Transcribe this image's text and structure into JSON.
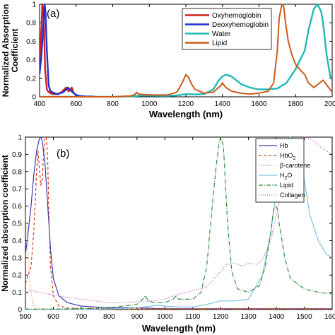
{
  "chart_data": [
    {
      "type": "line",
      "panel_label": "(a)",
      "xlabel": "Wavelength (nm)",
      "ylabel": "Normalized Absorption Coefficient",
      "xlim": [
        400,
        2000
      ],
      "ylim": [
        0,
        1
      ],
      "xticks": [
        400,
        600,
        800,
        1000,
        1200,
        1400,
        1600,
        1800,
        2000
      ],
      "yticks": [
        0,
        0.2,
        0.4,
        0.6,
        0.8,
        1
      ],
      "ytick_labels": [
        "0",
        "0.2",
        "0.4",
        "0.6",
        "0.8",
        "1"
      ],
      "legend_position": "top-center",
      "series": [
        {
          "name": "Oxyhemoglobin",
          "color": "#d11f1f",
          "width": 2.4,
          "x": [
            400,
            410,
            415,
            420,
            425,
            430,
            440,
            450,
            460,
            470,
            480,
            500,
            520,
            530,
            540,
            545,
            550,
            560,
            570,
            576,
            585,
            600,
            620,
            650,
            700
          ],
          "y": [
            0.4,
            0.75,
            1.0,
            0.95,
            0.7,
            0.3,
            0.08,
            0.05,
            0.04,
            0.03,
            0.03,
            0.03,
            0.05,
            0.07,
            0.09,
            0.1,
            0.08,
            0.06,
            0.08,
            0.1,
            0.05,
            0.01,
            0.005,
            0.003,
            0.002
          ]
        },
        {
          "name": "Deoxyhemoglobin",
          "color": "#1f2ed1",
          "width": 2.4,
          "x": [
            400,
            410,
            420,
            428,
            433,
            440,
            450,
            460,
            470,
            480,
            500,
            530,
            545,
            555,
            565,
            580,
            600,
            620,
            650,
            700
          ],
          "y": [
            0.25,
            0.45,
            0.75,
            1.0,
            0.9,
            0.5,
            0.12,
            0.06,
            0.05,
            0.04,
            0.03,
            0.05,
            0.08,
            0.1,
            0.08,
            0.05,
            0.02,
            0.01,
            0.005,
            0.003
          ]
        },
        {
          "name": "Water",
          "color": "#22b8b4",
          "width": 2.4,
          "x": [
            400,
            800,
            900,
            950,
            970,
            1000,
            1100,
            1150,
            1200,
            1250,
            1300,
            1350,
            1380,
            1400,
            1420,
            1450,
            1480,
            1500,
            1550,
            1600,
            1650,
            1700,
            1750,
            1800,
            1820,
            1850,
            1870,
            1900,
            1920,
            1940,
            1950,
            1970,
            1990,
            2000
          ],
          "y": [
            0.0,
            0.0,
            0.005,
            0.012,
            0.015,
            0.012,
            0.01,
            0.015,
            0.03,
            0.025,
            0.03,
            0.08,
            0.18,
            0.22,
            0.24,
            0.22,
            0.17,
            0.14,
            0.1,
            0.08,
            0.08,
            0.09,
            0.15,
            0.3,
            0.38,
            0.5,
            0.72,
            0.95,
            1.0,
            0.92,
            0.8,
            0.45,
            0.22,
            0.18
          ]
        },
        {
          "name": "Lipid",
          "color": "#cc5a1c",
          "width": 2.0,
          "x": [
            400,
            800,
            900,
            925,
            930,
            940,
            1000,
            1100,
            1150,
            1180,
            1200,
            1215,
            1230,
            1250,
            1300,
            1350,
            1390,
            1400,
            1410,
            1420,
            1450,
            1500,
            1550,
            1600,
            1650,
            1680,
            1700,
            1710,
            1725,
            1735,
            1745,
            1760,
            1780,
            1800,
            1830,
            1850,
            1870,
            1900,
            1950,
            2000
          ],
          "y": [
            0.0,
            0.0,
            0.01,
            0.03,
            0.05,
            0.03,
            0.02,
            0.02,
            0.05,
            0.15,
            0.24,
            0.21,
            0.14,
            0.08,
            0.04,
            0.05,
            0.12,
            0.15,
            0.12,
            0.1,
            0.06,
            0.04,
            0.03,
            0.04,
            0.06,
            0.15,
            0.5,
            0.85,
            1.0,
            0.98,
            0.8,
            0.6,
            0.45,
            0.35,
            0.28,
            0.24,
            0.15,
            0.1,
            0.18,
            0.05
          ]
        }
      ]
    },
    {
      "type": "line",
      "panel_label": "(b)",
      "xlabel": "Wavelength (nm)",
      "ylabel": "Normalized absorption coefficient",
      "xlim": [
        500,
        1600
      ],
      "ylim": [
        0,
        1
      ],
      "xticks": [
        500,
        600,
        700,
        800,
        900,
        1000,
        1100,
        1200,
        1300,
        1400,
        1500,
        1600
      ],
      "yticks": [
        0,
        0.1,
        0.2,
        0.3,
        0.4,
        0.5,
        0.6,
        0.7,
        0.8,
        0.9,
        1
      ],
      "ytick_labels": [
        "0",
        "0.1",
        "0.2",
        "0.3",
        "0.4",
        "0.5",
        "0.6",
        "0.7",
        "0.8",
        "0.9",
        "1"
      ],
      "legend_position": "top-right",
      "series": [
        {
          "name": "Hb",
          "label_main": "Hb",
          "label_sub": "",
          "color": "#3a3aa8",
          "dash": "",
          "width": 1.2,
          "x": [
            500,
            510,
            520,
            530,
            540,
            550,
            555,
            560,
            570,
            580,
            590,
            600,
            620,
            650,
            700,
            750,
            800,
            850,
            900,
            1000,
            1100,
            1200,
            1300,
            1400,
            1500,
            1600
          ],
          "y": [
            0.32,
            0.45,
            0.6,
            0.78,
            0.92,
            0.99,
            1.0,
            0.98,
            0.85,
            0.6,
            0.35,
            0.18,
            0.08,
            0.04,
            0.02,
            0.015,
            0.01,
            0.01,
            0.01,
            0.005,
            0.005,
            0.005,
            0.005,
            0.005,
            0.005,
            0.005
          ]
        },
        {
          "name": "HbO2",
          "label_main": "HbO",
          "label_sub": "2",
          "color": "#d43a1e",
          "dash": "4,3",
          "width": 1.2,
          "x": [
            500,
            520,
            530,
            540,
            545,
            550,
            555,
            560,
            565,
            570,
            575,
            580,
            585,
            590,
            600,
            620,
            650,
            700,
            800,
            900,
            1000,
            1200,
            1400,
            1600
          ],
          "y": [
            0.15,
            0.25,
            0.45,
            0.8,
            0.92,
            0.82,
            0.72,
            0.75,
            0.9,
            0.99,
            1.0,
            0.85,
            0.5,
            0.25,
            0.08,
            0.02,
            0.01,
            0.005,
            0.005,
            0.005,
            0.005,
            0.005,
            0.005,
            0.005
          ]
        },
        {
          "name": "β-carotene",
          "label_main": "β-carotene",
          "label_sub": "",
          "color": "#f08a2a",
          "dash": "1,2",
          "width": 1.2,
          "x": [
            500,
            505,
            510,
            515,
            520,
            525,
            530,
            540,
            550,
            600,
            700,
            800,
            900,
            1000,
            1200,
            1400,
            1600
          ],
          "y": [
            0.55,
            0.45,
            0.3,
            0.18,
            0.1,
            0.05,
            0.02,
            0.01,
            0.005,
            0.003,
            0.002,
            0.002,
            0.002,
            0.002,
            0.002,
            0.002,
            0.002
          ]
        },
        {
          "name": "H2O",
          "label_main": "H",
          "label_sub": "2",
          "label_tail": "O",
          "color": "#7cc3e6",
          "dash": "",
          "width": 1.2,
          "x": [
            500,
            700,
            800,
            900,
            950,
            970,
            1000,
            1050,
            1100,
            1150,
            1200,
            1250,
            1300,
            1350,
            1380,
            1400,
            1420,
            1440,
            1450,
            1460,
            1480,
            1500,
            1520,
            1550,
            1580,
            1600
          ],
          "y": [
            0.0,
            0.0,
            0.003,
            0.01,
            0.02,
            0.025,
            0.02,
            0.015,
            0.015,
            0.03,
            0.05,
            0.05,
            0.06,
            0.2,
            0.45,
            0.7,
            0.9,
            0.99,
            1.0,
            0.99,
            0.9,
            0.75,
            0.55,
            0.4,
            0.32,
            0.3
          ]
        },
        {
          "name": "Lipid",
          "label_main": "Lipid",
          "label_sub": "",
          "color": "#2f8a3a",
          "dash": "6,2,1,2",
          "width": 1.2,
          "x": [
            500,
            600,
            700,
            800,
            850,
            900,
            920,
            930,
            940,
            960,
            1000,
            1030,
            1040,
            1050,
            1100,
            1130,
            1150,
            1170,
            1185,
            1195,
            1200,
            1210,
            1215,
            1225,
            1240,
            1260,
            1300,
            1340,
            1360,
            1380,
            1390,
            1400,
            1405,
            1410,
            1420,
            1430,
            1450,
            1500,
            1550,
            1600
          ],
          "y": [
            0.003,
            0.003,
            0.005,
            0.01,
            0.02,
            0.03,
            0.06,
            0.08,
            0.05,
            0.04,
            0.04,
            0.06,
            0.08,
            0.06,
            0.06,
            0.1,
            0.25,
            0.6,
            0.85,
            0.97,
            1.0,
            0.95,
            0.8,
            0.5,
            0.22,
            0.12,
            0.1,
            0.14,
            0.25,
            0.45,
            0.58,
            0.6,
            0.57,
            0.5,
            0.4,
            0.3,
            0.18,
            0.12,
            0.1,
            0.09
          ]
        },
        {
          "name": "Collagen",
          "label_main": "Collagen",
          "label_sub": "",
          "color": "#c060c8",
          "dash": "1,2",
          "width": 1.3,
          "x": [
            500,
            520,
            550,
            600,
            650,
            700,
            750,
            800,
            850,
            900,
            950,
            1000,
            1050,
            1080,
            1100,
            1150,
            1200,
            1220,
            1250,
            1280,
            1300,
            1330,
            1350,
            1380,
            1400,
            1420,
            1440,
            1460,
            1480,
            1500,
            1520,
            1540,
            1560,
            1580,
            1600
          ],
          "y": [
            0.1,
            0.11,
            0.1,
            0.085,
            0.07,
            0.06,
            0.05,
            0.04,
            0.04,
            0.045,
            0.05,
            0.06,
            0.09,
            0.1,
            0.11,
            0.13,
            0.22,
            0.26,
            0.27,
            0.25,
            0.27,
            0.26,
            0.29,
            0.4,
            0.55,
            0.7,
            0.85,
            0.93,
            0.97,
            1.0,
            0.99,
            0.97,
            0.94,
            0.92,
            0.9
          ]
        }
      ]
    }
  ]
}
